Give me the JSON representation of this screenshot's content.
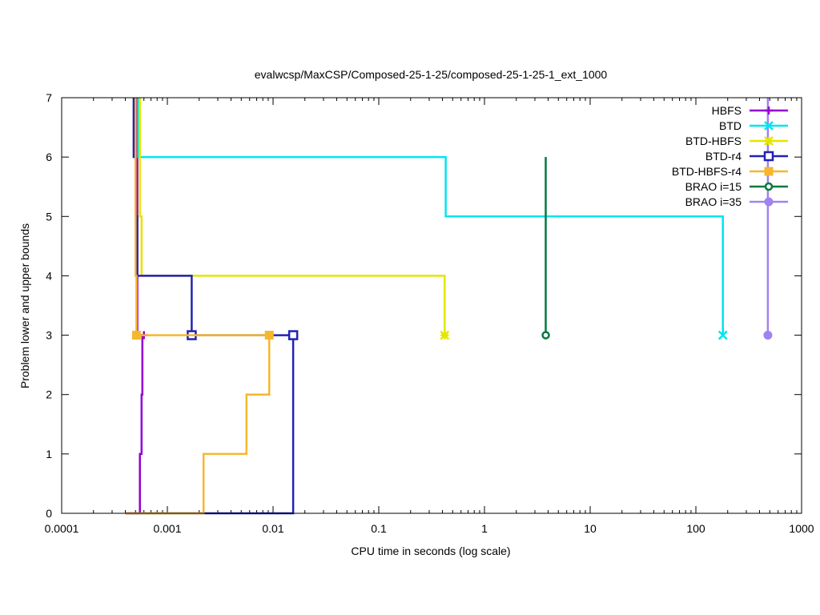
{
  "chart_data": {
    "type": "line",
    "title": "evalwcsp/MaxCSP/Composed-25-1-25/composed-25-1-25-1_ext_1000",
    "xlabel": "CPU time in seconds (log scale)",
    "ylabel": "Problem lower and upper bounds",
    "xscale": "log",
    "xlim": [
      0.0001,
      1000
    ],
    "ylim": [
      0,
      7
    ],
    "x_ticks": [
      0.0001,
      0.001,
      0.01,
      0.1,
      1,
      10,
      100,
      1000
    ],
    "x_tick_labels": [
      "0.0001",
      "0.001",
      "0.01",
      "0.1",
      "1",
      "10",
      "100",
      "1000"
    ],
    "y_ticks": [
      0,
      1,
      2,
      3,
      4,
      5,
      6,
      7
    ],
    "y_tick_labels": [
      "0",
      "1",
      "2",
      "3",
      "4",
      "5",
      "6",
      "7"
    ],
    "grid": false,
    "legend_position": "top-right",
    "series": [
      {
        "name": "HBFS",
        "color": "#9400d3",
        "marker": "plus",
        "upper": [
          [
            0.00052,
            7
          ],
          [
            0.00052,
            3
          ],
          [
            0.0006,
            3
          ]
        ],
        "lower": [
          [
            0.0004,
            0
          ],
          [
            0.00055,
            0
          ],
          [
            0.00055,
            1
          ],
          [
            0.00057,
            1
          ],
          [
            0.00057,
            2
          ],
          [
            0.00058,
            2
          ],
          [
            0.00058,
            3
          ],
          [
            0.0006,
            3
          ]
        ],
        "markers": [
          [
            0.0006,
            3
          ]
        ]
      },
      {
        "name": "BTD",
        "color": "#00e5ee",
        "marker": "cross",
        "upper": [
          [
            0.00053,
            7
          ],
          [
            0.00053,
            6
          ],
          [
            0.43,
            6
          ],
          [
            0.43,
            5
          ],
          [
            180,
            5
          ],
          [
            180,
            3
          ]
        ],
        "lower": [],
        "markers": [
          [
            180,
            3
          ]
        ]
      },
      {
        "name": "BTD-HBFS",
        "color": "#e5e500",
        "marker": "star",
        "upper": [
          [
            0.00055,
            7
          ],
          [
            0.00055,
            5
          ],
          [
            0.00057,
            5
          ],
          [
            0.00057,
            4
          ],
          [
            0.42,
            4
          ],
          [
            0.42,
            3
          ]
        ],
        "lower": [],
        "markers": [
          [
            0.42,
            3
          ]
        ]
      },
      {
        "name": "BTD-r4",
        "color": "#2222b4",
        "marker": "open-square",
        "upper": [
          [
            0.00048,
            7
          ],
          [
            0.00048,
            6
          ],
          [
            0.0005,
            6
          ],
          [
            0.0005,
            5
          ],
          [
            0.00052,
            5
          ],
          [
            0.00052,
            4
          ],
          [
            0.0017,
            4
          ],
          [
            0.0017,
            3
          ],
          [
            0.0155,
            3
          ]
        ],
        "lower": [
          [
            0.0004,
            0
          ],
          [
            0.0155,
            0
          ],
          [
            0.0155,
            3
          ]
        ],
        "markers": [
          [
            0.0017,
            3
          ],
          [
            0.0155,
            3
          ]
        ]
      },
      {
        "name": "BTD-HBFS-r4",
        "color": "#f5b72d",
        "marker": "filled-square",
        "upper": [
          [
            0.0005,
            7
          ],
          [
            0.0005,
            4
          ],
          [
            0.00051,
            4
          ],
          [
            0.00051,
            3
          ],
          [
            0.0092,
            3
          ]
        ],
        "lower": [
          [
            0.0004,
            0
          ],
          [
            0.0022,
            0
          ],
          [
            0.0022,
            1
          ],
          [
            0.0056,
            1
          ],
          [
            0.0056,
            2
          ],
          [
            0.0092,
            2
          ],
          [
            0.0092,
            3
          ]
        ],
        "markers": [
          [
            0.00051,
            3
          ],
          [
            0.0092,
            3
          ]
        ]
      },
      {
        "name": "BRAO i=15",
        "color": "#007a3d",
        "marker": "open-circle",
        "upper": [
          [
            3.8,
            6
          ],
          [
            3.8,
            3
          ]
        ],
        "lower": [],
        "markers": [
          [
            3.8,
            3
          ]
        ]
      },
      {
        "name": "BRAO i=35",
        "color": "#a082f0",
        "marker": "filled-circle",
        "upper": [
          [
            480,
            7
          ],
          [
            480,
            3
          ]
        ],
        "lower": [],
        "markers": [
          [
            480,
            3
          ]
        ]
      }
    ]
  }
}
